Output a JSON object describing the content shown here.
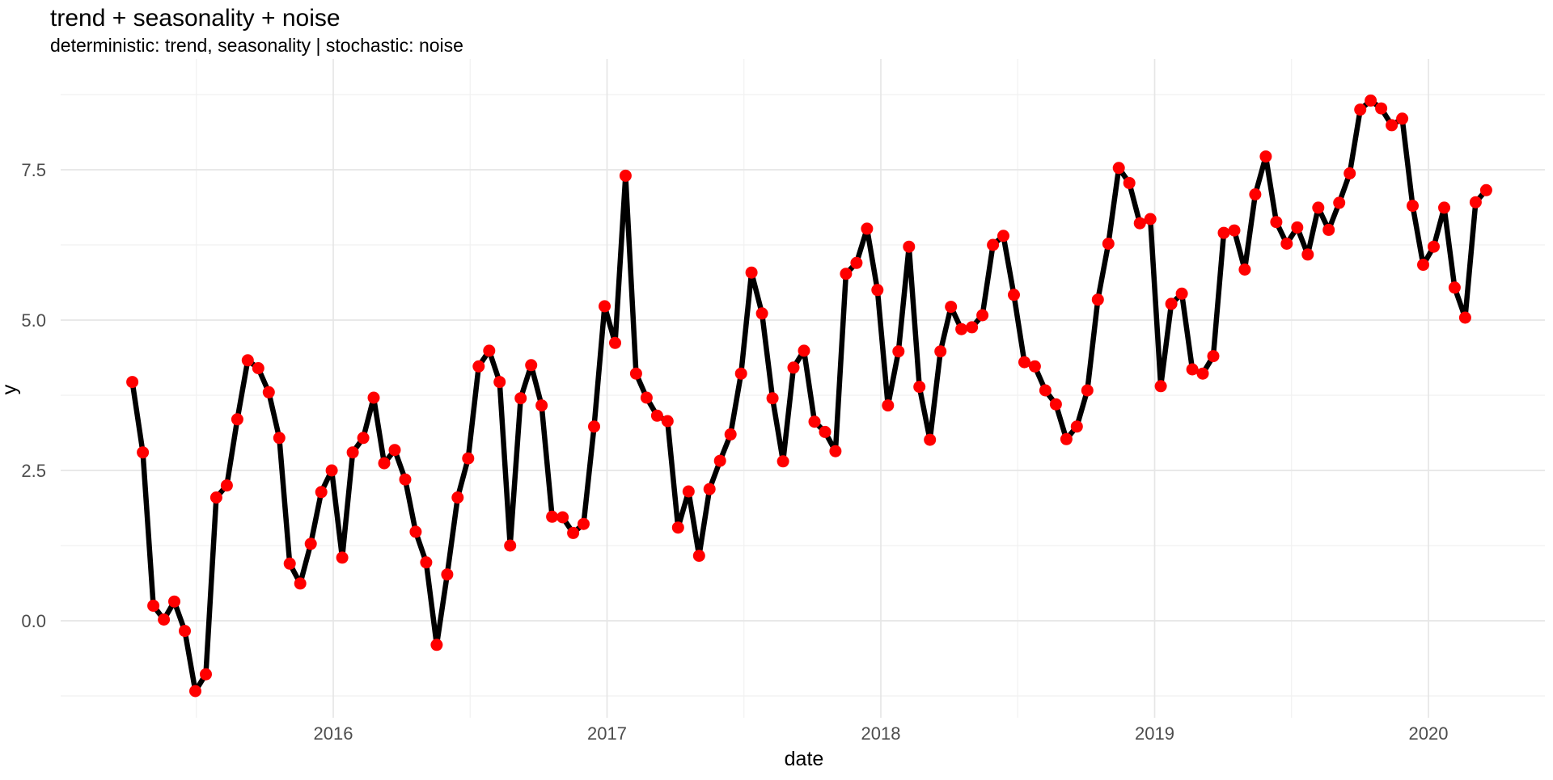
{
  "title": "trend + seasonality + noise",
  "subtitle": "deterministic: trend, seasonality | stochastic: noise",
  "colors": {
    "background": "#ffffff",
    "line": "#000000",
    "marker": "#ff0000",
    "grid_major": "#e6e6e6",
    "grid_minor": "#f1f1f1",
    "tick_label": "#4d4d4d",
    "text": "#000000"
  },
  "chart_data": {
    "type": "line",
    "title": "trend + seasonality + noise",
    "subtitle": "deterministic: trend, seasonality | stochastic: noise",
    "xlabel": "date",
    "ylabel": "y",
    "legend": "none",
    "grid": "on",
    "x_tick_labels": [
      "2016",
      "2017",
      "2018",
      "2019",
      "2020"
    ],
    "x_minor_ticks_mid_year": [
      2015.5,
      2016.5,
      2017.5,
      2018.5,
      2019.5
    ],
    "y_tick_labels": [
      "0.0",
      "2.5",
      "5.0",
      "7.5"
    ],
    "y_ticks": [
      0.0,
      2.5,
      5.0,
      7.5
    ],
    "y_minor_ticks": [
      -1.25,
      1.25,
      3.75,
      6.25,
      8.75
    ],
    "ylim": [
      -1.45,
      8.9
    ],
    "x_domain": [
      "2015-04-08",
      "2020-03-18"
    ],
    "frequency": "biweekly (14 days)",
    "series": [
      {
        "name": "y",
        "x": [
          "2015-04-08",
          "2015-04-22",
          "2015-05-06",
          "2015-05-20",
          "2015-06-03",
          "2015-06-17",
          "2015-07-01",
          "2015-07-15",
          "2015-07-29",
          "2015-08-12",
          "2015-08-26",
          "2015-09-09",
          "2015-09-23",
          "2015-10-07",
          "2015-10-21",
          "2015-11-04",
          "2015-11-18",
          "2015-12-02",
          "2015-12-16",
          "2015-12-30",
          "2016-01-13",
          "2016-01-27",
          "2016-02-10",
          "2016-02-24",
          "2016-03-09",
          "2016-03-23",
          "2016-04-06",
          "2016-04-20",
          "2016-05-04",
          "2016-05-18",
          "2016-06-01",
          "2016-06-15",
          "2016-06-29",
          "2016-07-13",
          "2016-07-27",
          "2016-08-10",
          "2016-08-24",
          "2016-09-07",
          "2016-09-21",
          "2016-10-05",
          "2016-10-19",
          "2016-11-02",
          "2016-11-16",
          "2016-11-30",
          "2016-12-14",
          "2016-12-28",
          "2017-01-11",
          "2017-01-25",
          "2017-02-08",
          "2017-02-22",
          "2017-03-08",
          "2017-03-22",
          "2017-04-05",
          "2017-04-19",
          "2017-05-03",
          "2017-05-17",
          "2017-05-31",
          "2017-06-14",
          "2017-06-28",
          "2017-07-12",
          "2017-07-26",
          "2017-08-09",
          "2017-08-23",
          "2017-09-06",
          "2017-09-20",
          "2017-10-04",
          "2017-10-18",
          "2017-11-01",
          "2017-11-15",
          "2017-11-29",
          "2017-12-13",
          "2017-12-27",
          "2018-01-10",
          "2018-01-24",
          "2018-02-07",
          "2018-02-21",
          "2018-03-07",
          "2018-03-21",
          "2018-04-04",
          "2018-04-18",
          "2018-05-02",
          "2018-05-16",
          "2018-05-30",
          "2018-06-13",
          "2018-06-27",
          "2018-07-11",
          "2018-07-25",
          "2018-08-08",
          "2018-08-22",
          "2018-09-05",
          "2018-09-19",
          "2018-10-03",
          "2018-10-17",
          "2018-10-31",
          "2018-11-14",
          "2018-11-28",
          "2018-12-12",
          "2018-12-26",
          "2019-01-09",
          "2019-01-23",
          "2019-02-06",
          "2019-02-20",
          "2019-03-06",
          "2019-03-20",
          "2019-04-03",
          "2019-04-17",
          "2019-05-01",
          "2019-05-15",
          "2019-05-29",
          "2019-06-12",
          "2019-06-26",
          "2019-07-10",
          "2019-07-24",
          "2019-08-07",
          "2019-08-21",
          "2019-09-04",
          "2019-09-18",
          "2019-10-02",
          "2019-10-16",
          "2019-10-30",
          "2019-11-13",
          "2019-11-27",
          "2019-12-11",
          "2019-12-25",
          "2020-01-08",
          "2020-01-22",
          "2020-02-05",
          "2020-02-19",
          "2020-03-04",
          "2020-03-18"
        ],
        "values": [
          3.97,
          2.8,
          0.25,
          0.02,
          0.32,
          -0.17,
          -1.17,
          -0.89,
          2.05,
          2.25,
          3.35,
          4.33,
          4.2,
          3.8,
          3.04,
          0.95,
          0.62,
          1.28,
          2.14,
          2.5,
          1.05,
          2.8,
          3.04,
          3.71,
          2.62,
          2.84,
          2.35,
          1.48,
          0.97,
          -0.4,
          0.77,
          2.05,
          2.7,
          4.23,
          4.49,
          3.97,
          1.25,
          3.7,
          4.25,
          3.58,
          1.73,
          1.72,
          1.46,
          1.61,
          3.23,
          5.23,
          4.62,
          7.4,
          4.11,
          3.71,
          3.41,
          3.32,
          1.55,
          2.15,
          1.08,
          2.19,
          2.66,
          3.1,
          4.11,
          5.79,
          5.11,
          3.7,
          2.65,
          4.21,
          4.49,
          3.31,
          3.14,
          2.82,
          5.77,
          5.95,
          6.52,
          5.5,
          3.58,
          4.48,
          6.22,
          3.89,
          3.01,
          4.48,
          5.22,
          4.85,
          4.88,
          5.08,
          6.25,
          6.4,
          5.42,
          4.3,
          4.23,
          3.83,
          3.6,
          3.02,
          3.23,
          3.83,
          5.34,
          6.27,
          7.53,
          7.28,
          6.61,
          6.68,
          3.9,
          5.27,
          5.44,
          4.18,
          4.11,
          4.4,
          6.45,
          6.49,
          5.84,
          7.09,
          7.72,
          6.63,
          6.27,
          6.54,
          6.09,
          6.87,
          6.5,
          6.95,
          7.44,
          8.5,
          8.65,
          8.52,
          8.24,
          8.35,
          6.9,
          5.92,
          6.22,
          6.87,
          5.54,
          5.04,
          6.96,
          7.16
        ]
      }
    ]
  }
}
